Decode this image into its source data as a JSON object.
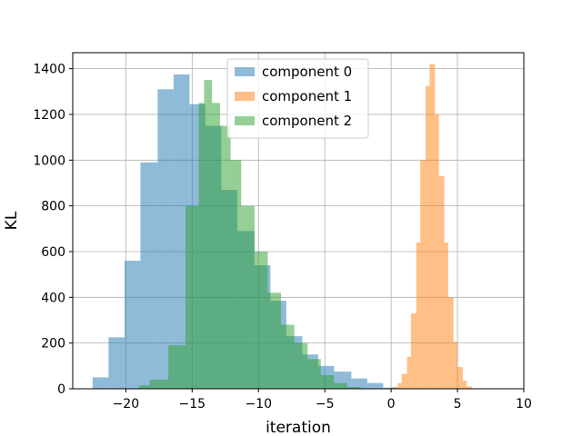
{
  "chart_data": {
    "type": "histogram",
    "xlabel": "iteration",
    "ylabel": "KL",
    "xlim": [
      -24,
      10
    ],
    "ylim": [
      0,
      1470
    ],
    "xticks": [
      -20,
      -15,
      -10,
      -5,
      0,
      5,
      10
    ],
    "yticks": [
      0,
      200,
      400,
      600,
      800,
      1000,
      1200,
      1400
    ],
    "grid": true,
    "legend_position": "top-center",
    "series": [
      {
        "name": "component 0",
        "color": "#1f77b4",
        "alpha": 0.5,
        "bins": [
          {
            "x0": -22.5,
            "x1": -21.3,
            "count": 50
          },
          {
            "x0": -21.3,
            "x1": -20.1,
            "count": 225
          },
          {
            "x0": -20.1,
            "x1": -18.9,
            "count": 560
          },
          {
            "x0": -18.9,
            "x1": -17.6,
            "count": 990
          },
          {
            "x0": -17.6,
            "x1": -16.4,
            "count": 1310
          },
          {
            "x0": -16.4,
            "x1": -15.2,
            "count": 1375
          },
          {
            "x0": -15.2,
            "x1": -14.0,
            "count": 1245
          },
          {
            "x0": -14.0,
            "x1": -12.8,
            "count": 1150
          },
          {
            "x0": -12.8,
            "x1": -11.6,
            "count": 870
          },
          {
            "x0": -11.6,
            "x1": -10.3,
            "count": 690
          },
          {
            "x0": -10.3,
            "x1": -9.1,
            "count": 540
          },
          {
            "x0": -9.1,
            "x1": -7.9,
            "count": 385
          },
          {
            "x0": -7.9,
            "x1": -6.7,
            "count": 230
          },
          {
            "x0": -6.7,
            "x1": -5.5,
            "count": 150
          },
          {
            "x0": -5.5,
            "x1": -4.3,
            "count": 100
          },
          {
            "x0": -4.3,
            "x1": -3.0,
            "count": 75
          },
          {
            "x0": -3.0,
            "x1": -1.8,
            "count": 45
          },
          {
            "x0": -1.8,
            "x1": -0.6,
            "count": 25
          },
          {
            "x0": -0.6,
            "x1": 0.6,
            "count": 5
          }
        ]
      },
      {
        "name": "component 1",
        "color": "#ff7f0e",
        "alpha": 0.5,
        "bins": [
          {
            "x0": 0.1,
            "x1": 0.5,
            "count": 8
          },
          {
            "x0": 0.5,
            "x1": 0.8,
            "count": 25
          },
          {
            "x0": 0.8,
            "x1": 1.2,
            "count": 65
          },
          {
            "x0": 1.2,
            "x1": 1.5,
            "count": 140
          },
          {
            "x0": 1.5,
            "x1": 1.9,
            "count": 330
          },
          {
            "x0": 1.9,
            "x1": 2.2,
            "count": 640
          },
          {
            "x0": 2.2,
            "x1": 2.6,
            "count": 1000
          },
          {
            "x0": 2.6,
            "x1": 2.9,
            "count": 1325
          },
          {
            "x0": 2.9,
            "x1": 3.3,
            "count": 1420
          },
          {
            "x0": 3.3,
            "x1": 3.6,
            "count": 1200
          },
          {
            "x0": 3.6,
            "x1": 4.0,
            "count": 930
          },
          {
            "x0": 4.0,
            "x1": 4.3,
            "count": 640
          },
          {
            "x0": 4.3,
            "x1": 4.7,
            "count": 400
          },
          {
            "x0": 4.7,
            "x1": 5.0,
            "count": 205
          },
          {
            "x0": 5.0,
            "x1": 5.4,
            "count": 95
          },
          {
            "x0": 5.4,
            "x1": 5.7,
            "count": 35
          },
          {
            "x0": 5.7,
            "x1": 6.1,
            "count": 10
          }
        ]
      },
      {
        "name": "component 2",
        "color": "#2ca02c",
        "alpha": 0.5,
        "bins": [
          {
            "x0": -19.0,
            "x1": -18.2,
            "count": 15
          },
          {
            "x0": -18.2,
            "x1": -16.8,
            "count": 40
          },
          {
            "x0": -16.8,
            "x1": -15.5,
            "count": 190
          },
          {
            "x0": -15.5,
            "x1": -14.5,
            "count": 800
          },
          {
            "x0": -14.5,
            "x1": -14.1,
            "count": 1250
          },
          {
            "x0": -14.1,
            "x1": -13.5,
            "count": 1350
          },
          {
            "x0": -13.5,
            "x1": -12.9,
            "count": 1250
          },
          {
            "x0": -12.9,
            "x1": -12.1,
            "count": 1150
          },
          {
            "x0": -12.1,
            "x1": -11.3,
            "count": 1000
          },
          {
            "x0": -11.3,
            "x1": -10.3,
            "count": 800
          },
          {
            "x0": -10.3,
            "x1": -9.3,
            "count": 600
          },
          {
            "x0": -9.3,
            "x1": -8.3,
            "count": 420
          },
          {
            "x0": -8.3,
            "x1": -7.3,
            "count": 280
          },
          {
            "x0": -7.3,
            "x1": -6.3,
            "count": 200
          },
          {
            "x0": -6.3,
            "x1": -5.3,
            "count": 130
          },
          {
            "x0": -5.3,
            "x1": -4.3,
            "count": 60
          },
          {
            "x0": -4.3,
            "x1": -3.3,
            "count": 25
          },
          {
            "x0": -3.3,
            "x1": -2.3,
            "count": 8
          }
        ]
      }
    ]
  }
}
